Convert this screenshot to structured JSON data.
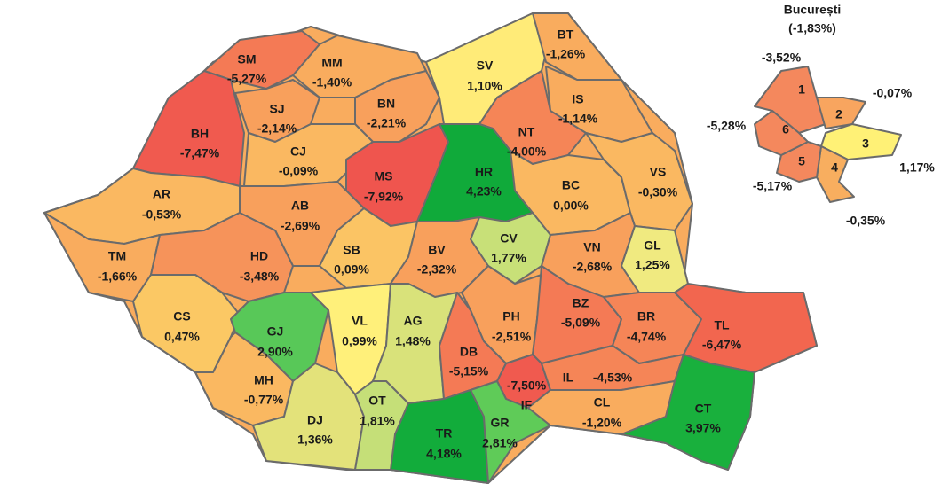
{
  "counties": [
    {
      "code": "SM",
      "value": "-5,27%",
      "color": "#f47a55"
    },
    {
      "code": "MM",
      "value": "-1,40%",
      "color": "#f9ac5e"
    },
    {
      "code": "BH",
      "value": "-7,47%",
      "color": "#f05a4f"
    },
    {
      "code": "SJ",
      "value": "-2,14%",
      "color": "#f8a05c"
    },
    {
      "code": "BN",
      "value": "-2,21%",
      "color": "#f8a05c"
    },
    {
      "code": "SV",
      "value": "1,10%",
      "color": "#ffeb78"
    },
    {
      "code": "BT",
      "value": "-1,26%",
      "color": "#f9ac5e"
    },
    {
      "code": "IS",
      "value": "-1,14%",
      "color": "#f9ac5e"
    },
    {
      "code": "NT",
      "value": "-4,00%",
      "color": "#f58557"
    },
    {
      "code": "CJ",
      "value": "-0,09%",
      "color": "#fab861"
    },
    {
      "code": "MS",
      "value": "-7,92%",
      "color": "#ef554e"
    },
    {
      "code": "HR",
      "value": "4,23%",
      "color": "#10aa3a"
    },
    {
      "code": "BC",
      "value": "0,00%",
      "color": "#fab861"
    },
    {
      "code": "VS",
      "value": "-0,30%",
      "color": "#fab861"
    },
    {
      "code": "AR",
      "value": "-0,53%",
      "color": "#fab861"
    },
    {
      "code": "AB",
      "value": "-2,69%",
      "color": "#f8a05c"
    },
    {
      "code": "CV",
      "value": "1,77%",
      "color": "#c8e078"
    },
    {
      "code": "VN",
      "value": "-2,68%",
      "color": "#f8a05c"
    },
    {
      "code": "GL",
      "value": "1,25%",
      "color": "#f0ea80"
    },
    {
      "code": "TM",
      "value": "-1,66%",
      "color": "#f9ac5e"
    },
    {
      "code": "HD",
      "value": "-3,48%",
      "color": "#f6935a"
    },
    {
      "code": "SB",
      "value": "0,09%",
      "color": "#fbc464"
    },
    {
      "code": "BV",
      "value": "-2,32%",
      "color": "#f8a05c"
    },
    {
      "code": "CS",
      "value": "0,47%",
      "color": "#fbc864"
    },
    {
      "code": "GJ",
      "value": "2,90%",
      "color": "#58c858"
    },
    {
      "code": "VL",
      "value": "0,99%",
      "color": "#fff07a"
    },
    {
      "code": "AG",
      "value": "1,48%",
      "color": "#d9e27a"
    },
    {
      "code": "PH",
      "value": "-2,51%",
      "color": "#f8a05c"
    },
    {
      "code": "BZ",
      "value": "-5,09%",
      "color": "#f47a55"
    },
    {
      "code": "BR",
      "value": "-4,74%",
      "color": "#f58557"
    },
    {
      "code": "TL",
      "value": "-6,47%",
      "color": "#f2664f"
    },
    {
      "code": "DB",
      "value": "-5,15%",
      "color": "#f47a55"
    },
    {
      "code": "IF",
      "value": "-7,50%",
      "color": "#f05a4f"
    },
    {
      "code": "IL",
      "value": "-4,53%",
      "color": "#f58557"
    },
    {
      "code": "MH",
      "value": "-0,77%",
      "color": "#fab861"
    },
    {
      "code": "DJ",
      "value": "1,36%",
      "color": "#e3e27a"
    },
    {
      "code": "OT",
      "value": "1,81%",
      "color": "#c5df78"
    },
    {
      "code": "TR",
      "value": "4,18%",
      "color": "#12ac3b"
    },
    {
      "code": "GR",
      "value": "2,81%",
      "color": "#5fcb58"
    },
    {
      "code": "CL",
      "value": "-1,20%",
      "color": "#f9ac5e"
    },
    {
      "code": "CT",
      "value": "3,97%",
      "color": "#19b03d"
    }
  ],
  "bucharest": {
    "title": "București",
    "value": "(-1,83%)",
    "sectors": [
      {
        "label": "1",
        "value": "-3,52%",
        "color": "#f4885d"
      },
      {
        "label": "2",
        "value": "-0,07%",
        "color": "#f8a55f"
      },
      {
        "label": "3",
        "value": "1,17%",
        "color": "#fff176"
      },
      {
        "label": "4",
        "value": "-0,35%",
        "color": "#f8ae5f"
      },
      {
        "label": "5",
        "value": "-5,17%",
        "color": "#f4885d"
      },
      {
        "label": "6",
        "value": "-5,28%",
        "color": "#f4885d"
      }
    ]
  }
}
